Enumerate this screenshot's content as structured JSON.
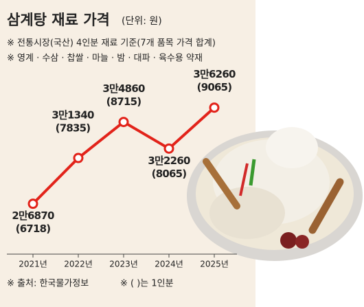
{
  "chart_data": {
    "type": "line",
    "title": "삼계탕 재료 가격",
    "unit": "(단위: 원)",
    "notes": [
      "※ 전통시장(국산) 4인분 재료 기준(7개 품목 가격 합계)",
      "※ 영계 · 수삼 · 찹쌀 · 마늘 · 밤 · 대파 · 육수용 약재"
    ],
    "source": "※ 출처: 한국물가정보",
    "footnote": "※ ( )는 1인분",
    "categories": [
      "2021년",
      "2022년",
      "2023년",
      "2024년",
      "2025년"
    ],
    "series": [
      {
        "name": "4인분",
        "color": "#e2231a",
        "values": [
          26870,
          31340,
          34860,
          32260,
          36260
        ],
        "value_labels": [
          "2만6870",
          "3만1340",
          "3만4860",
          "3만2260",
          "3만6260"
        ],
        "sub_labels": [
          "(6718)",
          "(7835)",
          "(8715)",
          "(8065)",
          "(9065)"
        ]
      }
    ],
    "ylim": [
      20000,
      40000
    ]
  }
}
